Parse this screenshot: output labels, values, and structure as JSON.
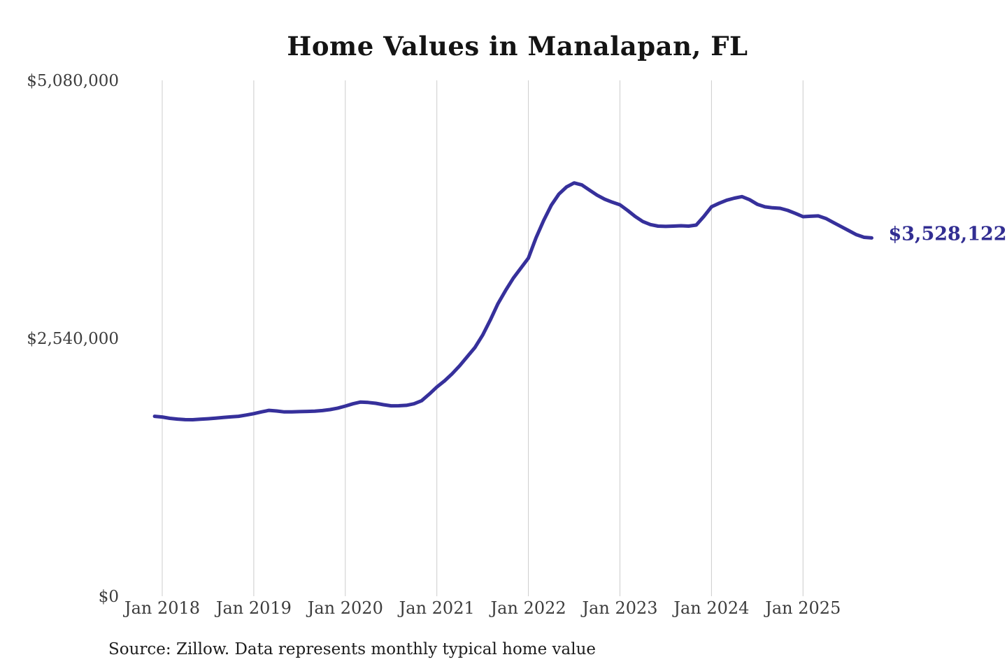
{
  "page": {
    "title": "Home Values in Manalapan, FL",
    "source_note": "Source: Zillow. Data represents monthly typical home value"
  },
  "chart_data": {
    "type": "line",
    "title": "Home Values in Manalapan, FL",
    "source_note": "Source: Zillow. Data represents monthly typical home value",
    "end_label": "$3,528,122",
    "end_value": 3528122,
    "line_color": "#36309b",
    "end_label_color": "#322e92",
    "gridline_color": "#cccccc",
    "tick_label_color": "#3d3d3d",
    "grid": "vertical-only",
    "legend_position": "none",
    "y_axis": {
      "min": 0,
      "max": 5080000,
      "ticks": [
        {
          "label": "$0",
          "value": 0
        },
        {
          "label": "$2,540,000",
          "value": 2540000
        },
        {
          "label": "$5,080,000",
          "value": 5080000
        }
      ]
    },
    "x_axis": {
      "ticks": [
        {
          "label": "Jan 2018",
          "date": "2018-01"
        },
        {
          "label": "Jan 2019",
          "date": "2019-01"
        },
        {
          "label": "Jan 2020",
          "date": "2020-01"
        },
        {
          "label": "Jan 2021",
          "date": "2021-01"
        },
        {
          "label": "Jan 2022",
          "date": "2022-01"
        },
        {
          "label": "Jan 2023",
          "date": "2023-01"
        },
        {
          "label": "Jan 2024",
          "date": "2024-01"
        },
        {
          "label": "Jan 2025",
          "date": "2025-01"
        }
      ]
    },
    "series": [
      {
        "name": "Monthly typical home value",
        "points": [
          [
            "2017-12",
            1772000
          ],
          [
            "2018-01",
            1765000
          ],
          [
            "2018-02",
            1752000
          ],
          [
            "2018-03",
            1744000
          ],
          [
            "2018-04",
            1739000
          ],
          [
            "2018-05",
            1738000
          ],
          [
            "2018-06",
            1743000
          ],
          [
            "2018-07",
            1748000
          ],
          [
            "2018-08",
            1754000
          ],
          [
            "2018-09",
            1760000
          ],
          [
            "2018-10",
            1766000
          ],
          [
            "2018-11",
            1772000
          ],
          [
            "2018-12",
            1784000
          ],
          [
            "2019-01",
            1798000
          ],
          [
            "2019-02",
            1815000
          ],
          [
            "2019-03",
            1830000
          ],
          [
            "2019-04",
            1824000
          ],
          [
            "2019-05",
            1815000
          ],
          [
            "2019-06",
            1816000
          ],
          [
            "2019-07",
            1818000
          ],
          [
            "2019-08",
            1820000
          ],
          [
            "2019-09",
            1822000
          ],
          [
            "2019-10",
            1828000
          ],
          [
            "2019-11",
            1838000
          ],
          [
            "2019-12",
            1852000
          ],
          [
            "2020-01",
            1872000
          ],
          [
            "2020-02",
            1895000
          ],
          [
            "2020-03",
            1912000
          ],
          [
            "2020-04",
            1908000
          ],
          [
            "2020-05",
            1900000
          ],
          [
            "2020-06",
            1886000
          ],
          [
            "2020-07",
            1875000
          ],
          [
            "2020-08",
            1876000
          ],
          [
            "2020-09",
            1880000
          ],
          [
            "2020-10",
            1895000
          ],
          [
            "2020-11",
            1925000
          ],
          [
            "2020-12",
            1990000
          ],
          [
            "2021-01",
            2060000
          ],
          [
            "2021-02",
            2120000
          ],
          [
            "2021-03",
            2190000
          ],
          [
            "2021-04",
            2270000
          ],
          [
            "2021-05",
            2360000
          ],
          [
            "2021-06",
            2450000
          ],
          [
            "2021-07",
            2570000
          ],
          [
            "2021-08",
            2720000
          ],
          [
            "2021-09",
            2880000
          ],
          [
            "2021-10",
            3010000
          ],
          [
            "2021-11",
            3130000
          ],
          [
            "2021-12",
            3230000
          ],
          [
            "2022-01",
            3330000
          ],
          [
            "2022-02",
            3530000
          ],
          [
            "2022-03",
            3700000
          ],
          [
            "2022-04",
            3850000
          ],
          [
            "2022-05",
            3960000
          ],
          [
            "2022-06",
            4030000
          ],
          [
            "2022-07",
            4070000
          ],
          [
            "2022-08",
            4050000
          ],
          [
            "2022-09",
            4000000
          ],
          [
            "2022-10",
            3950000
          ],
          [
            "2022-11",
            3910000
          ],
          [
            "2022-12",
            3880000
          ],
          [
            "2023-01",
            3855000
          ],
          [
            "2023-02",
            3800000
          ],
          [
            "2023-03",
            3740000
          ],
          [
            "2023-04",
            3690000
          ],
          [
            "2023-05",
            3660000
          ],
          [
            "2023-06",
            3645000
          ],
          [
            "2023-07",
            3642000
          ],
          [
            "2023-08",
            3645000
          ],
          [
            "2023-09",
            3648000
          ],
          [
            "2023-10",
            3645000
          ],
          [
            "2023-11",
            3655000
          ],
          [
            "2023-12",
            3740000
          ],
          [
            "2024-01",
            3835000
          ],
          [
            "2024-02",
            3870000
          ],
          [
            "2024-03",
            3900000
          ],
          [
            "2024-04",
            3920000
          ],
          [
            "2024-05",
            3935000
          ],
          [
            "2024-06",
            3905000
          ],
          [
            "2024-07",
            3860000
          ],
          [
            "2024-08",
            3835000
          ],
          [
            "2024-09",
            3825000
          ],
          [
            "2024-10",
            3820000
          ],
          [
            "2024-11",
            3800000
          ],
          [
            "2024-12",
            3770000
          ],
          [
            "2025-01",
            3738000
          ],
          [
            "2025-02",
            3742000
          ],
          [
            "2025-03",
            3745000
          ],
          [
            "2025-04",
            3720000
          ],
          [
            "2025-05",
            3680000
          ],
          [
            "2025-06",
            3640000
          ],
          [
            "2025-07",
            3600000
          ],
          [
            "2025-08",
            3560000
          ],
          [
            "2025-09",
            3535000
          ],
          [
            "2025-10",
            3528122
          ]
        ]
      }
    ]
  }
}
